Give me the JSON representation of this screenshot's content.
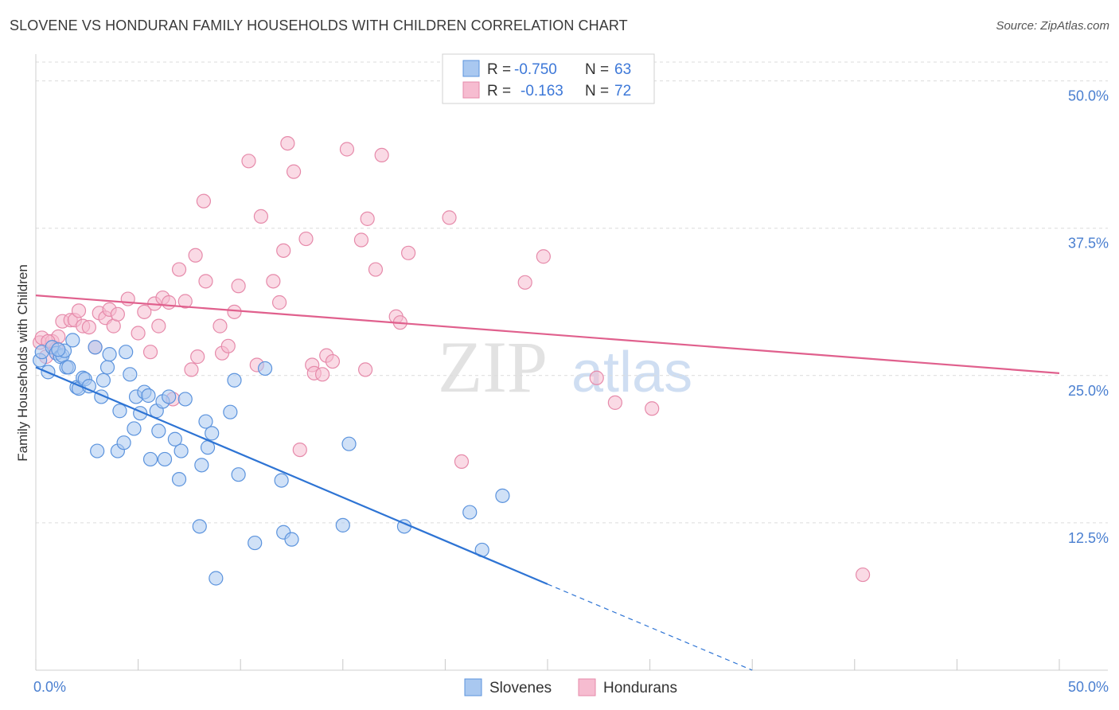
{
  "title": "SLOVENE VS HONDURAN FAMILY HOUSEHOLDS WITH CHILDREN CORRELATION CHART",
  "source": "Source: ZipAtlas.com",
  "watermark": {
    "zip": "ZIP",
    "atlas": "atlas"
  },
  "colors": {
    "slovene_fill": "#a9c8f0",
    "slovene_stroke": "#5b93dd",
    "slovene_line": "#2e74d4",
    "honduran_fill": "#f6bcd0",
    "honduran_stroke": "#e68aaa",
    "honduran_line": "#e0608d",
    "axis_label": "#4a7fd0",
    "grid": "#dcdcdc"
  },
  "legend": {
    "r_label": "R =",
    "n_label": "N =",
    "rows": [
      {
        "r": "-0.750",
        "n": "63"
      },
      {
        "r": "-0.163",
        "n": "72"
      }
    ]
  },
  "chart_data": {
    "type": "scatter",
    "title": "SLOVENE VS HONDURAN FAMILY HOUSEHOLDS WITH CHILDREN CORRELATION CHART",
    "xlabel": "",
    "ylabel": "Family Households with Children",
    "xlim": [
      0,
      50
    ],
    "ylim": [
      0,
      52
    ],
    "x_tick_labels": [
      "0.0%",
      "50.0%"
    ],
    "y_ticks": [
      12.5,
      25.0,
      37.5,
      50.0
    ],
    "y_tick_labels": [
      "12.5%",
      "25.0%",
      "37.5%",
      "50.0%"
    ],
    "grid": true,
    "legend_position": "top-center",
    "series": [
      {
        "name": "Slovenes",
        "r": -0.75,
        "n": 63,
        "trend": {
          "x0": 0,
          "y0": 25.7,
          "x1": 25,
          "y1": 7.3,
          "dash_to_x": 35,
          "dash_to_y": 0.0
        },
        "points": [
          [
            0.2,
            26.3
          ],
          [
            0.3,
            27.0
          ],
          [
            0.6,
            25.3
          ],
          [
            0.8,
            27.4
          ],
          [
            1.0,
            26.9
          ],
          [
            1.2,
            26.6
          ],
          [
            1.3,
            26.7
          ],
          [
            1.4,
            27.1
          ],
          [
            1.5,
            25.7
          ],
          [
            1.6,
            25.7
          ],
          [
            1.8,
            28.0
          ],
          [
            2.0,
            24.0
          ],
          [
            2.1,
            23.9
          ],
          [
            2.3,
            24.8
          ],
          [
            2.4,
            24.7
          ],
          [
            2.6,
            24.1
          ],
          [
            2.9,
            27.4
          ],
          [
            3.0,
            18.6
          ],
          [
            3.2,
            23.2
          ],
          [
            3.3,
            24.6
          ],
          [
            3.5,
            25.7
          ],
          [
            3.6,
            26.8
          ],
          [
            4.0,
            18.6
          ],
          [
            4.1,
            22.0
          ],
          [
            4.3,
            19.3
          ],
          [
            4.4,
            27.0
          ],
          [
            4.6,
            25.1
          ],
          [
            4.8,
            20.5
          ],
          [
            4.9,
            23.2
          ],
          [
            5.1,
            21.8
          ],
          [
            5.3,
            23.6
          ],
          [
            5.5,
            23.3
          ],
          [
            5.6,
            17.9
          ],
          [
            5.9,
            22.0
          ],
          [
            6.0,
            20.3
          ],
          [
            6.2,
            22.8
          ],
          [
            6.3,
            17.9
          ],
          [
            6.5,
            23.2
          ],
          [
            6.8,
            19.6
          ],
          [
            7.0,
            16.2
          ],
          [
            7.1,
            18.6
          ],
          [
            7.3,
            23.0
          ],
          [
            8.0,
            12.2
          ],
          [
            8.1,
            17.4
          ],
          [
            8.3,
            21.1
          ],
          [
            8.4,
            18.9
          ],
          [
            8.6,
            20.1
          ],
          [
            8.8,
            7.8
          ],
          [
            9.5,
            21.9
          ],
          [
            9.7,
            24.6
          ],
          [
            9.9,
            16.6
          ],
          [
            10.7,
            10.8
          ],
          [
            11.2,
            25.6
          ],
          [
            12.0,
            16.1
          ],
          [
            12.1,
            11.7
          ],
          [
            12.5,
            11.1
          ],
          [
            15.0,
            12.3
          ],
          [
            15.3,
            19.2
          ],
          [
            18.0,
            12.2
          ],
          [
            21.2,
            13.4
          ],
          [
            21.8,
            10.2
          ],
          [
            22.8,
            14.8
          ],
          [
            1.1,
            27.2
          ]
        ]
      },
      {
        "name": "Hondurans",
        "r": -0.163,
        "n": 72,
        "trend": {
          "x0": 0,
          "y0": 31.8,
          "x1": 50,
          "y1": 25.2
        },
        "points": [
          [
            0.2,
            27.8
          ],
          [
            0.3,
            28.2
          ],
          [
            0.5,
            26.6
          ],
          [
            0.8,
            27.9
          ],
          [
            1.0,
            27.3
          ],
          [
            1.1,
            28.3
          ],
          [
            1.3,
            29.6
          ],
          [
            1.7,
            29.7
          ],
          [
            1.9,
            29.7
          ],
          [
            2.1,
            30.5
          ],
          [
            2.3,
            29.2
          ],
          [
            2.6,
            29.1
          ],
          [
            2.9,
            27.4
          ],
          [
            3.1,
            30.3
          ],
          [
            3.4,
            29.9
          ],
          [
            3.6,
            30.6
          ],
          [
            3.8,
            29.2
          ],
          [
            4.0,
            30.2
          ],
          [
            4.5,
            31.5
          ],
          [
            5.0,
            28.6
          ],
          [
            5.3,
            30.4
          ],
          [
            5.6,
            27.0
          ],
          [
            5.8,
            31.1
          ],
          [
            6.0,
            29.2
          ],
          [
            6.2,
            31.6
          ],
          [
            6.5,
            31.2
          ],
          [
            6.7,
            23.0
          ],
          [
            7.0,
            34.0
          ],
          [
            7.3,
            31.3
          ],
          [
            7.6,
            25.5
          ],
          [
            7.8,
            35.2
          ],
          [
            7.9,
            26.6
          ],
          [
            8.2,
            39.8
          ],
          [
            8.3,
            33.0
          ],
          [
            9.0,
            29.2
          ],
          [
            9.1,
            26.9
          ],
          [
            9.4,
            27.5
          ],
          [
            9.7,
            30.4
          ],
          [
            9.9,
            32.6
          ],
          [
            10.4,
            43.2
          ],
          [
            10.8,
            25.9
          ],
          [
            11.0,
            38.5
          ],
          [
            11.6,
            33.0
          ],
          [
            11.9,
            31.2
          ],
          [
            12.1,
            35.6
          ],
          [
            12.3,
            44.7
          ],
          [
            12.6,
            42.3
          ],
          [
            12.9,
            18.7
          ],
          [
            13.2,
            36.6
          ],
          [
            13.5,
            25.9
          ],
          [
            13.6,
            25.2
          ],
          [
            14.0,
            25.1
          ],
          [
            14.2,
            26.7
          ],
          [
            14.5,
            26.2
          ],
          [
            15.2,
            44.2
          ],
          [
            15.9,
            36.5
          ],
          [
            16.1,
            25.5
          ],
          [
            16.2,
            38.3
          ],
          [
            16.6,
            34.0
          ],
          [
            16.9,
            43.7
          ],
          [
            17.6,
            30.0
          ],
          [
            17.8,
            29.5
          ],
          [
            18.2,
            35.4
          ],
          [
            20.2,
            38.4
          ],
          [
            20.8,
            17.7
          ],
          [
            23.9,
            32.9
          ],
          [
            24.8,
            35.1
          ],
          [
            27.4,
            24.8
          ],
          [
            28.3,
            22.7
          ],
          [
            30.1,
            22.2
          ],
          [
            40.4,
            8.1
          ],
          [
            0.6,
            27.9
          ]
        ]
      }
    ]
  }
}
